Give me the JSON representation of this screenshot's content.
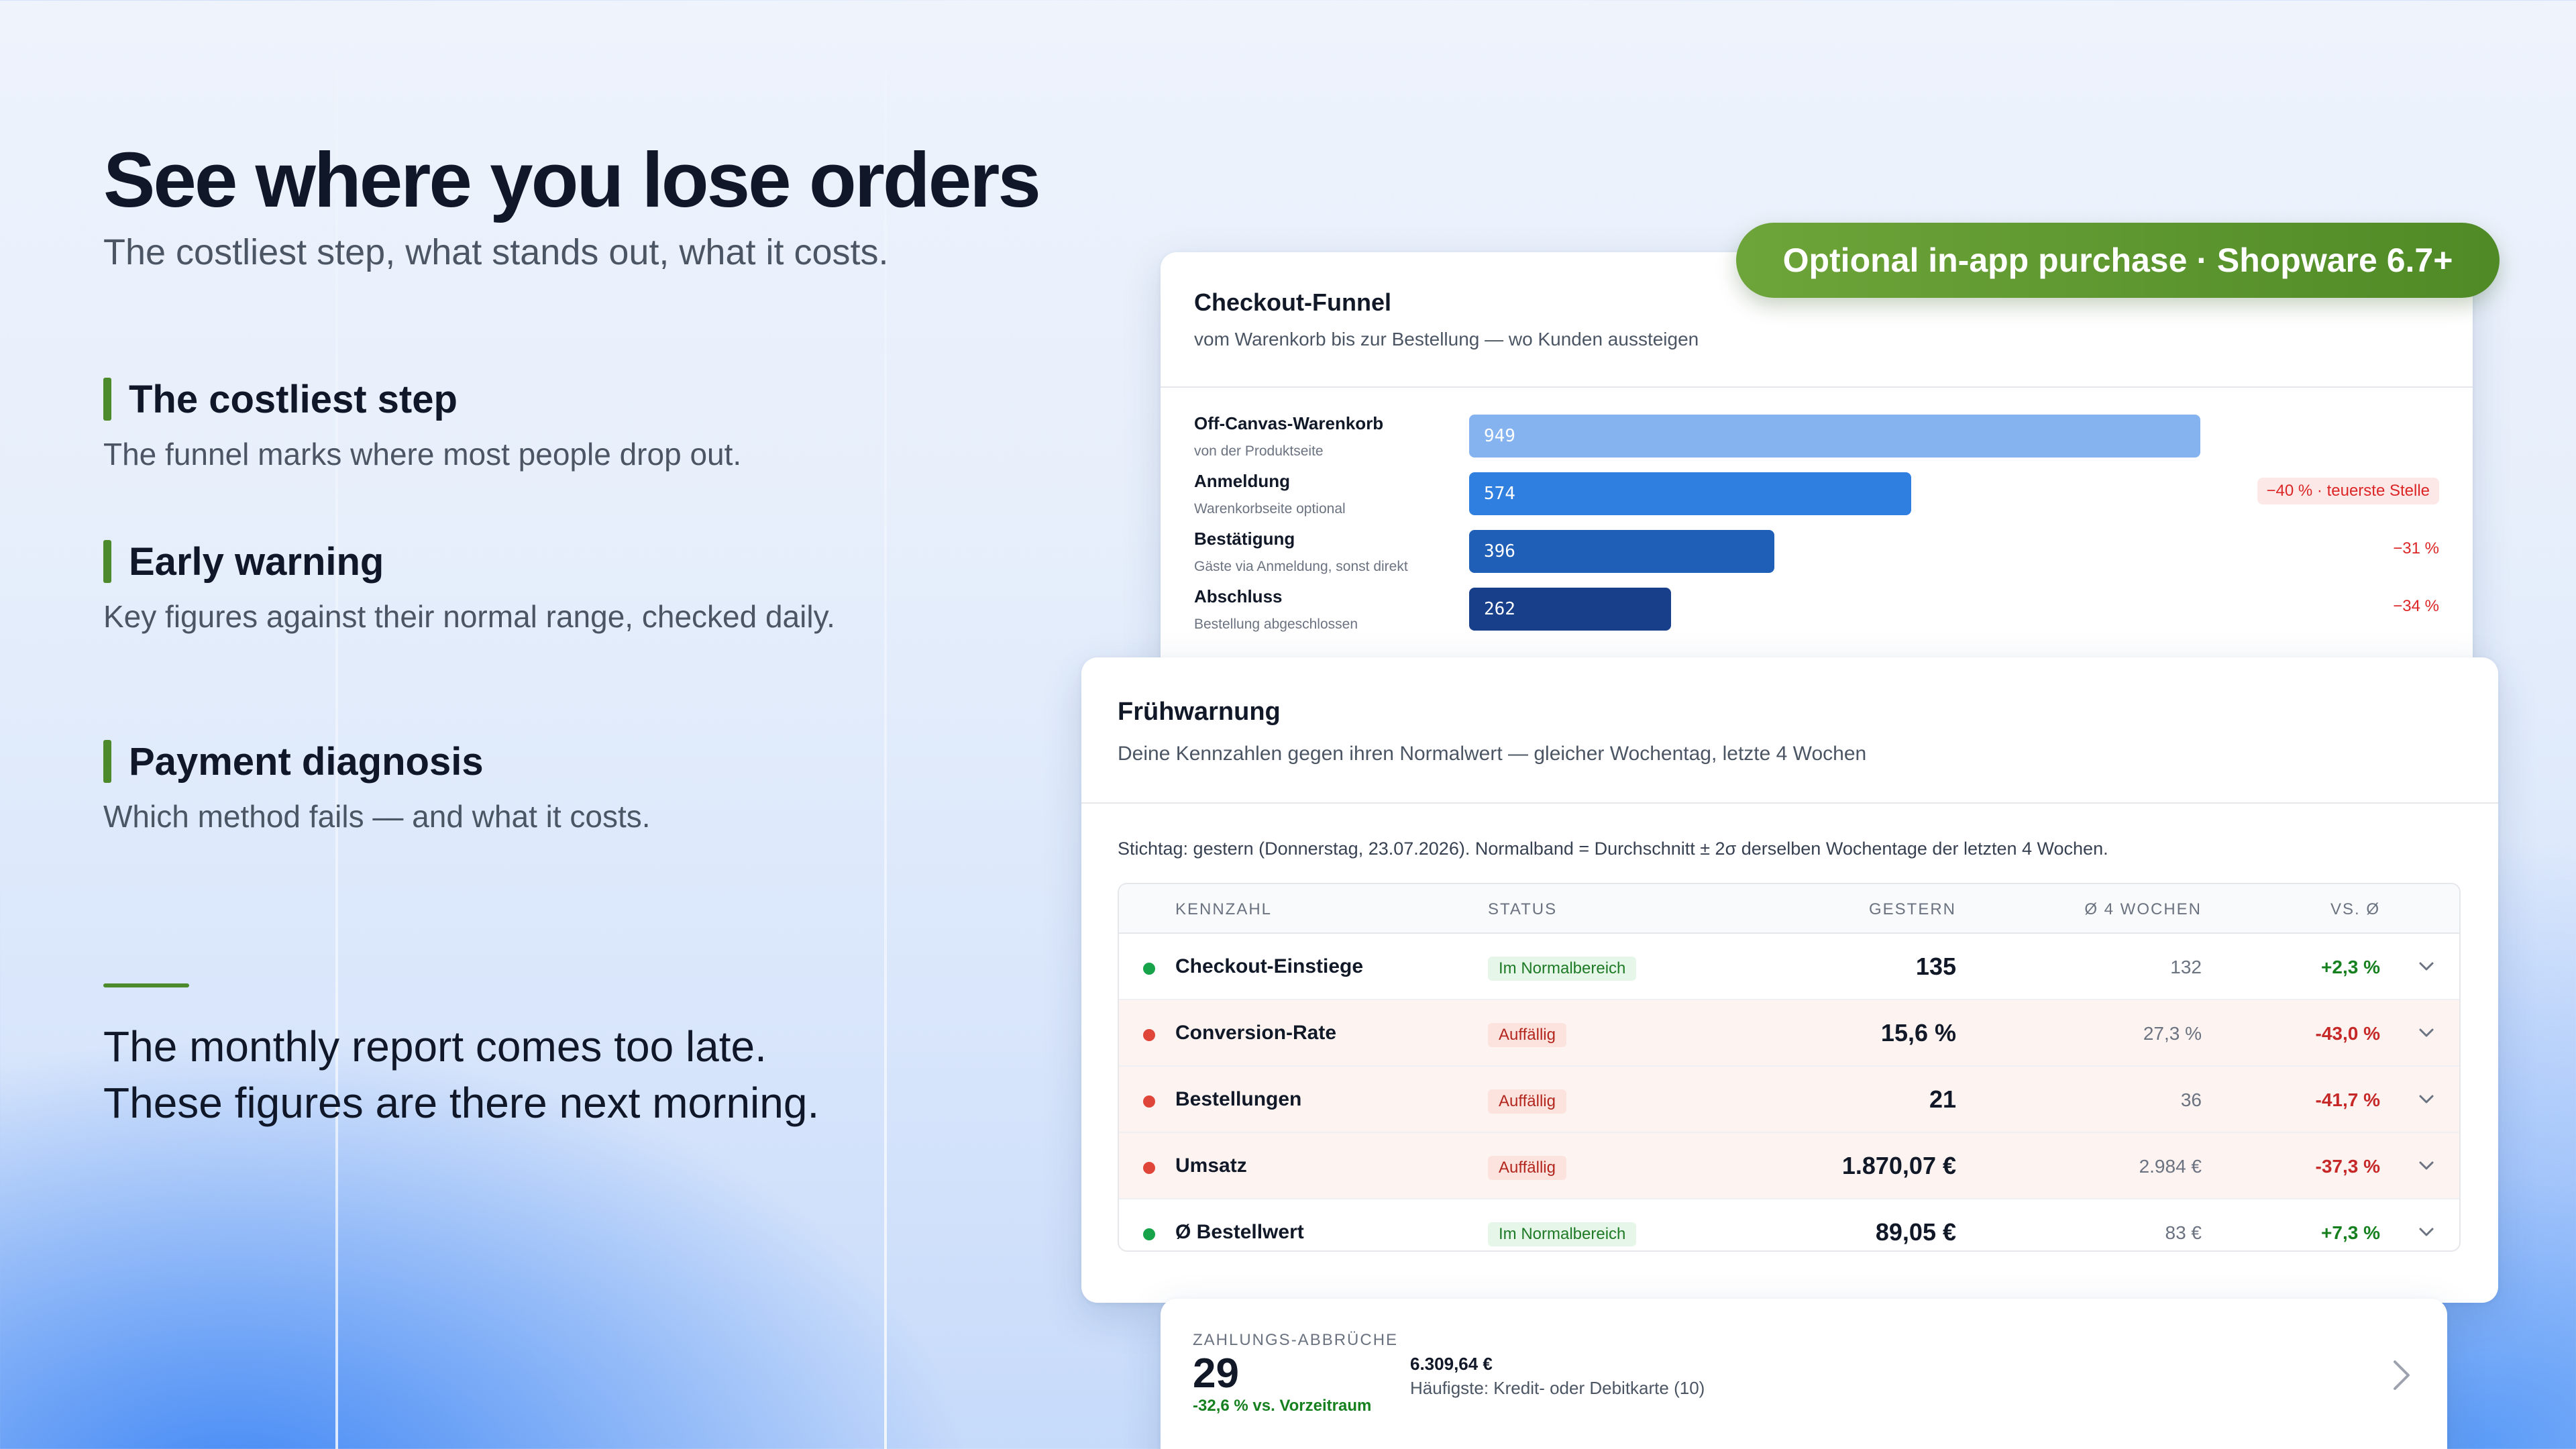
{
  "hero": {
    "headline": "See where you lose orders",
    "subline": "The costliest step, what stands out, what it costs."
  },
  "features": [
    {
      "title": "The costliest step",
      "text": "The funnel marks where most people drop out."
    },
    {
      "title": "Early warning",
      "text": "Key figures against their normal range, checked daily."
    },
    {
      "title": "Payment diagnosis",
      "text": "Which method fails — and what it costs."
    }
  ],
  "closing": {
    "line1": "The monthly report comes too late.",
    "line2": "These figures are there next morning."
  },
  "purchase_badge": "Optional in-app purchase · Shopware 6.7+",
  "funnel": {
    "title": "Checkout-Funnel",
    "subtitle": "vom Warenkorb bis zur Bestellung — wo Kunden aussteigen",
    "max_value": 949,
    "steps": [
      {
        "name": "Off-Canvas-Warenkorb",
        "hint": "von der Produktseite",
        "value": 949,
        "value_label": "949",
        "delta": "",
        "color": "#84b3f0"
      },
      {
        "name": "Anmeldung",
        "hint": "Warenkorbseite optional",
        "value": 574,
        "value_label": "574",
        "delta": "−40 % · teuerste Stelle",
        "color": "#2f7fe0"
      },
      {
        "name": "Bestätigung",
        "hint": "Gäste via Anmeldung, sonst direkt",
        "value": 396,
        "value_label": "396",
        "delta": "−31 %",
        "color": "#1f5fb8"
      },
      {
        "name": "Abschluss",
        "hint": "Bestellung abgeschlossen",
        "value": 262,
        "value_label": "262",
        "delta": "−34 %",
        "color": "#173f8a"
      }
    ]
  },
  "warning": {
    "title": "Frühwarnung",
    "subtitle": "Deine Kennzahlen gegen ihren Normalwert — gleicher Wochentag, letzte 4 Wochen",
    "stichtag": "Stichtag: gestern (Donnerstag, 23.07.2026). Normalband = Durchschnitt ± 2σ derselben Wochentage der letzten 4 Wochen.",
    "headers": {
      "kennzahl": "KENNZAHL",
      "status": "STATUS",
      "gestern": "GESTERN",
      "avg": "Ø 4 WOCHEN",
      "vs": "VS. Ø"
    },
    "rows": [
      {
        "name": "Checkout-Einstiege",
        "status": "Im Normalbereich",
        "state": "ok",
        "gestern": "135",
        "avg": "132",
        "vs": "+2,3 %"
      },
      {
        "name": "Conversion-Rate",
        "status": "Auffällig",
        "state": "warn",
        "gestern": "15,6 %",
        "avg": "27,3 %",
        "vs": "-43,0 %"
      },
      {
        "name": "Bestellungen",
        "status": "Auffällig",
        "state": "warn",
        "gestern": "21",
        "avg": "36",
        "vs": "-41,7 %"
      },
      {
        "name": "Umsatz",
        "status": "Auffällig",
        "state": "warn",
        "gestern": "1.870,07 €",
        "avg": "2.984 €",
        "vs": "-37,3 %"
      },
      {
        "name": "Ø Bestellwert",
        "status": "Im Normalbereich",
        "state": "ok",
        "gestern": "89,05 €",
        "avg": "83 €",
        "vs": "+7,3 %"
      }
    ]
  },
  "payment": {
    "label": "ZAHLUNGS-ABBRÜCHE",
    "value": "29",
    "change": "-32,6 % vs. Vorzeitraum",
    "amount": "6.309,64 €",
    "method": "Häufigste: Kredit- oder Debitkarte (10)"
  },
  "colors": {
    "accent_green": "#4d8a2b",
    "ok_dot": "#16a34a",
    "warn_dot": "#e0453a"
  }
}
